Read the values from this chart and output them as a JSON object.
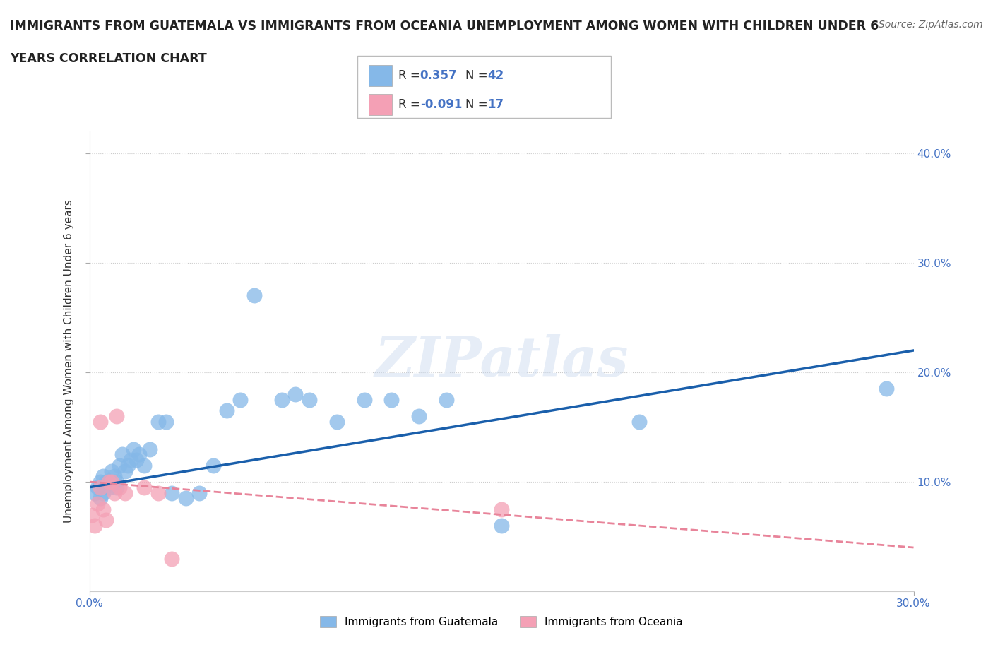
{
  "title_line1": "IMMIGRANTS FROM GUATEMALA VS IMMIGRANTS FROM OCEANIA UNEMPLOYMENT AMONG WOMEN WITH CHILDREN UNDER 6",
  "title_line2": "YEARS CORRELATION CHART",
  "source": "Source: ZipAtlas.com",
  "ylabel": "Unemployment Among Women with Children Under 6 years",
  "xlim": [
    0.0,
    0.3
  ],
  "ylim": [
    0.0,
    0.42
  ],
  "xticks": [
    0.0,
    0.3
  ],
  "yticks": [
    0.1,
    0.2,
    0.3,
    0.4
  ],
  "background_color": "#ffffff",
  "watermark": "ZIPatlas",
  "guatemala_color": "#85B8E8",
  "oceania_color": "#F4A0B5",
  "trend_guatemala_color": "#1A5FAB",
  "trend_oceania_color": "#E8849A",
  "guatemala_x": [
    0.002,
    0.003,
    0.004,
    0.004,
    0.005,
    0.005,
    0.006,
    0.007,
    0.008,
    0.009,
    0.01,
    0.01,
    0.011,
    0.012,
    0.013,
    0.014,
    0.015,
    0.016,
    0.017,
    0.018,
    0.02,
    0.022,
    0.025,
    0.028,
    0.03,
    0.035,
    0.04,
    0.045,
    0.05,
    0.055,
    0.06,
    0.07,
    0.075,
    0.08,
    0.09,
    0.1,
    0.11,
    0.12,
    0.13,
    0.15,
    0.2,
    0.29
  ],
  "guatemala_y": [
    0.09,
    0.095,
    0.085,
    0.1,
    0.09,
    0.105,
    0.1,
    0.095,
    0.11,
    0.105,
    0.1,
    0.095,
    0.115,
    0.125,
    0.11,
    0.115,
    0.12,
    0.13,
    0.12,
    0.125,
    0.115,
    0.13,
    0.155,
    0.155,
    0.09,
    0.085,
    0.09,
    0.115,
    0.165,
    0.175,
    0.27,
    0.175,
    0.18,
    0.175,
    0.155,
    0.175,
    0.175,
    0.16,
    0.175,
    0.06,
    0.155,
    0.185
  ],
  "oceania_x": [
    0.001,
    0.002,
    0.003,
    0.004,
    0.004,
    0.005,
    0.006,
    0.007,
    0.008,
    0.009,
    0.01,
    0.011,
    0.013,
    0.02,
    0.025,
    0.03,
    0.15
  ],
  "oceania_y": [
    0.07,
    0.06,
    0.08,
    0.095,
    0.155,
    0.075,
    0.065,
    0.1,
    0.1,
    0.09,
    0.16,
    0.095,
    0.09,
    0.095,
    0.09,
    0.03,
    0.075
  ],
  "trend_g_x0": 0.0,
  "trend_g_y0": 0.095,
  "trend_g_x1": 0.3,
  "trend_g_y1": 0.22,
  "trend_o_x0": 0.0,
  "trend_o_y0": 0.1,
  "trend_o_x1": 0.3,
  "trend_o_y1": 0.04
}
